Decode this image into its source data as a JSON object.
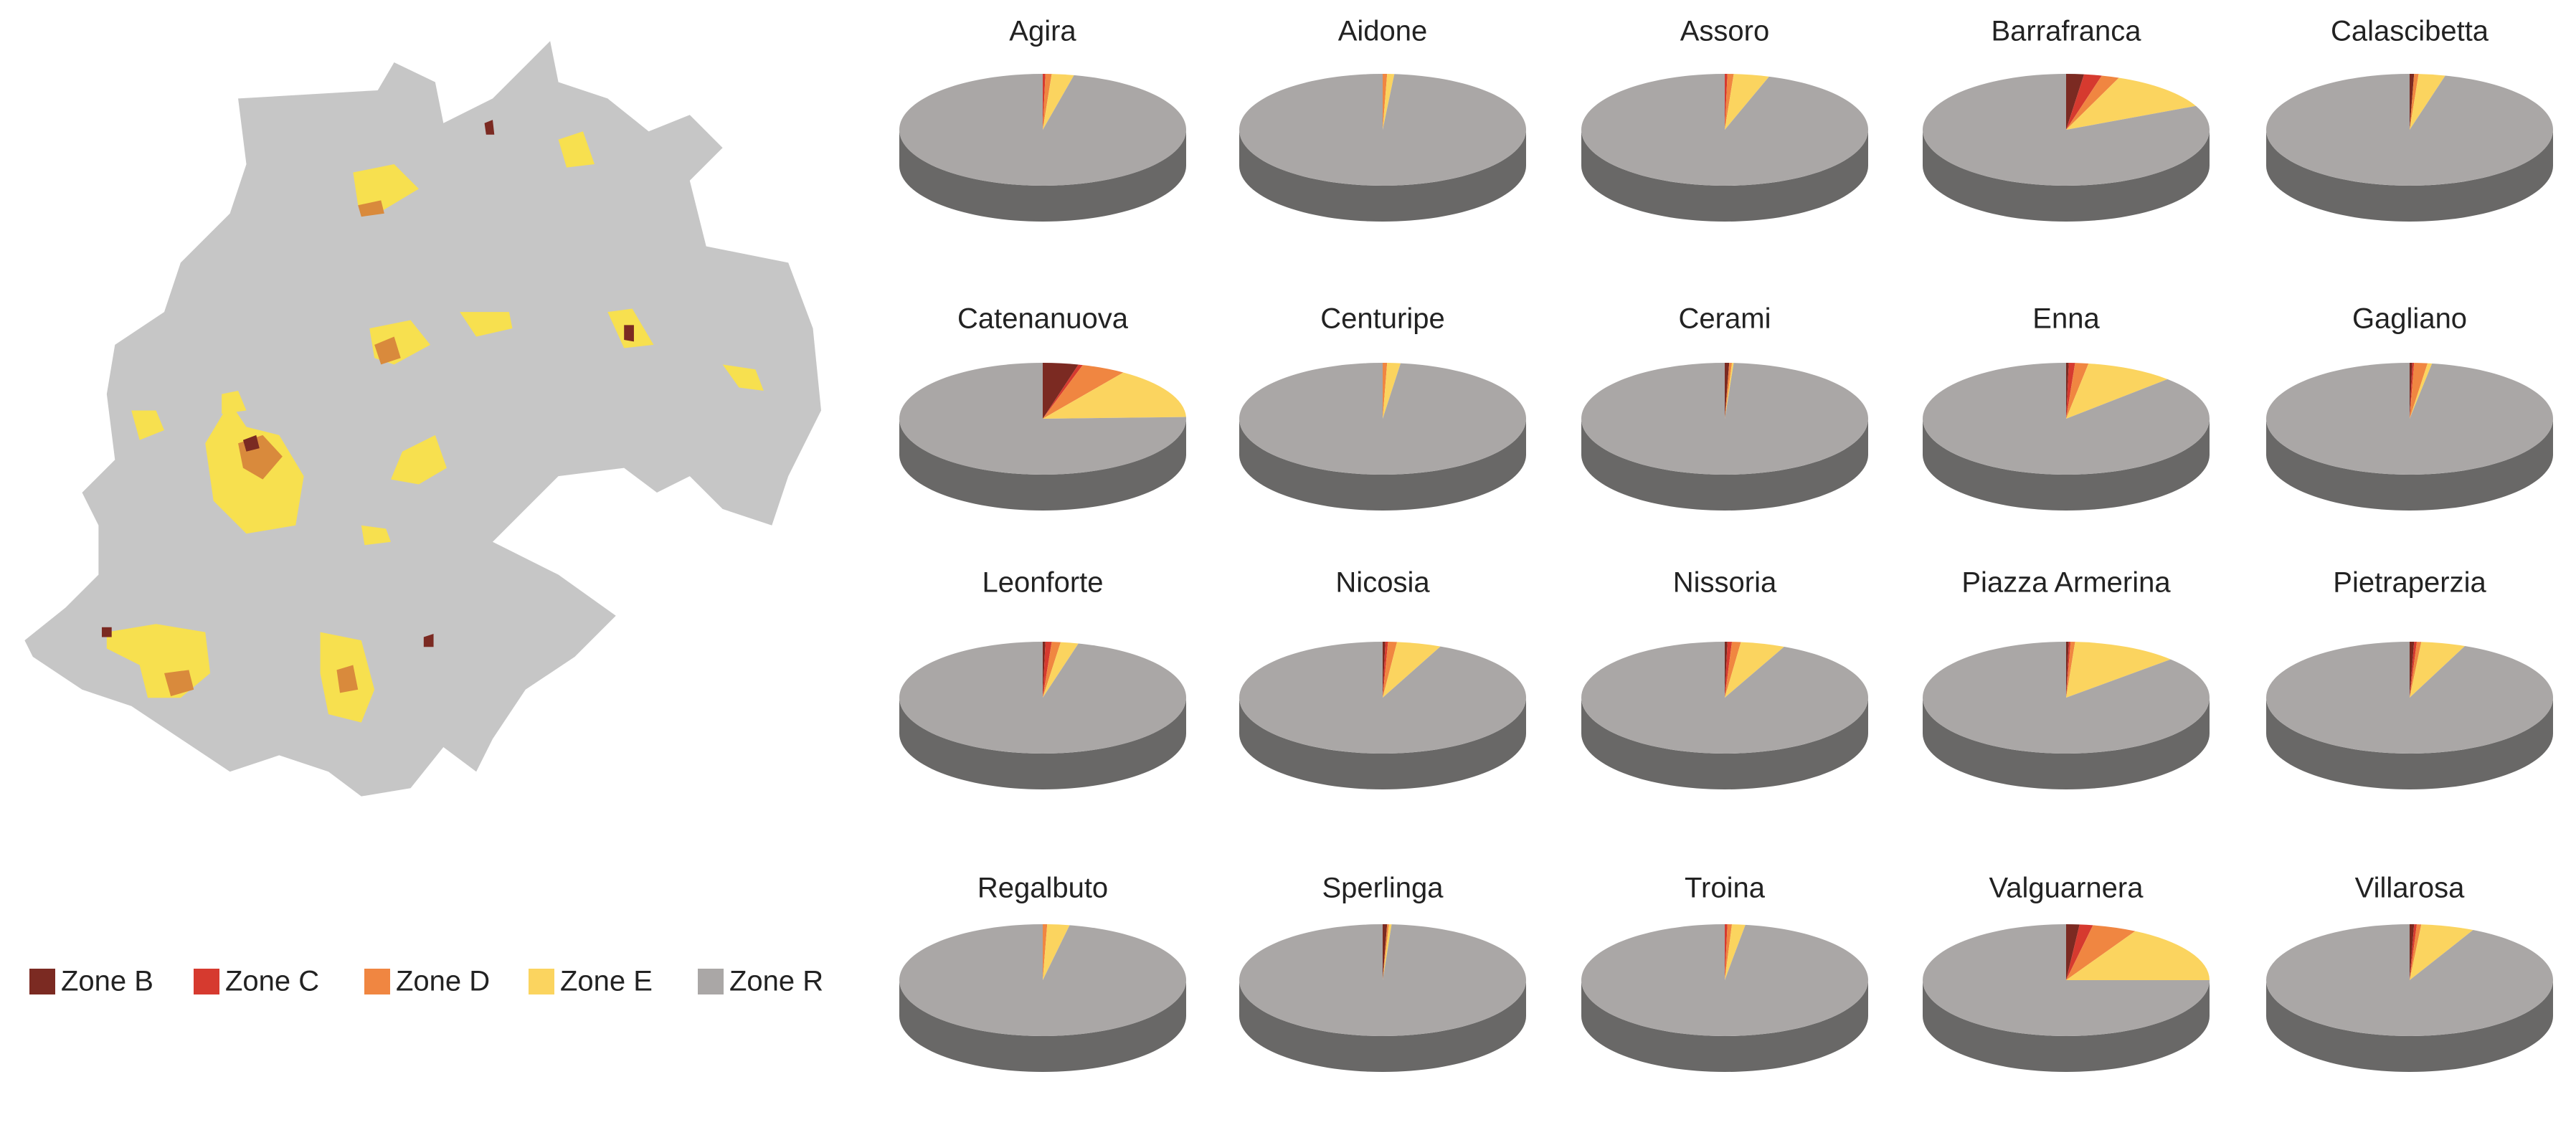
{
  "chart_data": {
    "type": "pie",
    "categories": [
      "Zone B",
      "Zone C",
      "Zone D",
      "Zone E",
      "Zone R"
    ],
    "colors": [
      "#7b2a22",
      "#d63a2f",
      "#f08641",
      "#fbd45f",
      "#aaa7a6"
    ],
    "pies": [
      {
        "title": "Agira",
        "values": [
          0,
          0.3,
          0.7,
          2.5,
          96.5
        ]
      },
      {
        "title": "Aidone",
        "values": [
          0,
          0,
          0.5,
          0.8,
          98.7
        ]
      },
      {
        "title": "Assoro",
        "values": [
          0,
          0.3,
          0.7,
          4,
          95
        ]
      },
      {
        "title": "Barrafranca",
        "values": [
          2,
          2,
          2,
          12,
          82
        ]
      },
      {
        "title": "Calascibetta",
        "values": [
          0.5,
          0,
          0.5,
          3,
          96
        ]
      },
      {
        "title": "Catenanuova",
        "values": [
          4,
          0.5,
          5,
          15,
          75.5
        ]
      },
      {
        "title": "Centuripe",
        "values": [
          0,
          0,
          0.5,
          1.5,
          98
        ]
      },
      {
        "title": "Cerami",
        "values": [
          0.5,
          0,
          0.3,
          0.2,
          99
        ]
      },
      {
        "title": "Enna",
        "values": [
          0.3,
          0.7,
          1.5,
          10,
          87.5
        ]
      },
      {
        "title": "Gagliano",
        "values": [
          0.3,
          0.2,
          1.5,
          0.5,
          97.5
        ]
      },
      {
        "title": "Leonforte",
        "values": [
          0.3,
          0.7,
          1,
          2,
          96
        ]
      },
      {
        "title": "Nicosia",
        "values": [
          0.3,
          0.3,
          1,
          5,
          93.4
        ]
      },
      {
        "title": "Nissoria",
        "values": [
          0.3,
          0.5,
          1,
          5,
          93.2
        ]
      },
      {
        "title": "Piazza Armerina",
        "values": [
          0.3,
          0.2,
          0.5,
          12,
          87
        ]
      },
      {
        "title": "Pietraperzia",
        "values": [
          0.5,
          0.3,
          0.5,
          5,
          93.7
        ]
      },
      {
        "title": "Regalbuto",
        "values": [
          0,
          0,
          0.5,
          2.5,
          97
        ]
      },
      {
        "title": "Sperlinga",
        "values": [
          0.5,
          0,
          0.2,
          0.3,
          99
        ]
      },
      {
        "title": "Troina",
        "values": [
          0,
          0.3,
          0.5,
          1.5,
          97.7
        ]
      },
      {
        "title": "Valguarnera",
        "values": [
          1.5,
          1.5,
          5,
          17,
          75
        ]
      },
      {
        "title": "Villarosa",
        "values": [
          0.5,
          0.3,
          0.5,
          6,
          92.7
        ]
      }
    ]
  }
}
